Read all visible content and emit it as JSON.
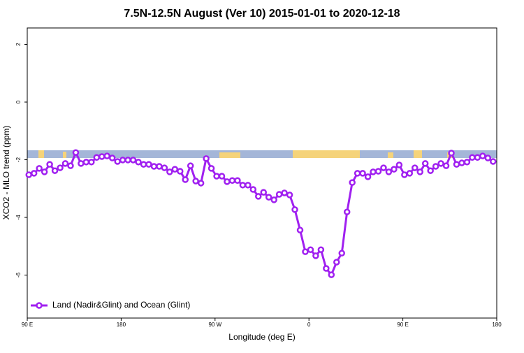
{
  "chart_data": {
    "type": "line",
    "title": "7.5N-12.5N August (Ver 10)   2015-01-01 to 2020-12-18",
    "x_label": "Longitude (deg E)",
    "y_label": "XCO2 - MLO trend (ppm)",
    "x": [
      91.5,
      96.5,
      101.5,
      106.5,
      111.5,
      116.5,
      121.5,
      126.5,
      131.5,
      136.5,
      141.5,
      146.5,
      151.5,
      156.5,
      161.5,
      166.5,
      171.5,
      176.5,
      181.5,
      186.5,
      191.5,
      196.5,
      201.5,
      206.5,
      211.5,
      216.5,
      221.5,
      226.5,
      231.5,
      236.5,
      241.5,
      246.5,
      251.5,
      256.5,
      261.5,
      266.5,
      271.5,
      276.5,
      281.5,
      286.5,
      291.5,
      296.5,
      301.5,
      306.5,
      311.5,
      316.5,
      321.5,
      326.5,
      331.5,
      336.5,
      341.5,
      346.5,
      351.5,
      356.5,
      361.5,
      366.5,
      371.5,
      376.5,
      381.5,
      386.5,
      391.5,
      396.5,
      401.5,
      406.5,
      411.5,
      416.5,
      421.5,
      426.5,
      431.5,
      436.5,
      441.5,
      446.5,
      451.5,
      456.5,
      461.5,
      466.5,
      471.5,
      476.5,
      481.5,
      486.5,
      491.5,
      496.5,
      501.5,
      506.5,
      511.5,
      516.5,
      521.5,
      526.5,
      531.5,
      536.5
    ],
    "series": [
      {
        "name": "Land (Nadir&Glint) and Ocean (Glint)",
        "color": "#a020f0",
        "values": [
          -2.52,
          -2.47,
          -2.3,
          -2.42,
          -2.16,
          -2.38,
          -2.28,
          -2.13,
          -2.21,
          -1.75,
          -2.13,
          -2.08,
          -2.08,
          -1.92,
          -1.89,
          -1.87,
          -1.94,
          -2.06,
          -2.01,
          -2.01,
          -2.01,
          -2.08,
          -2.16,
          -2.16,
          -2.23,
          -2.23,
          -2.28,
          -2.42,
          -2.33,
          -2.4,
          -2.69,
          -2.21,
          -2.74,
          -2.81,
          -1.96,
          -2.3,
          -2.57,
          -2.57,
          -2.76,
          -2.72,
          -2.72,
          -2.88,
          -2.88,
          -3.03,
          -3.27,
          -3.13,
          -3.3,
          -3.39,
          -3.2,
          -3.15,
          -3.22,
          -3.73,
          -4.44,
          -5.19,
          -5.12,
          -5.33,
          -5.12,
          -5.77,
          -5.99,
          -5.55,
          -5.24,
          -3.81,
          -2.79,
          -2.47,
          -2.47,
          -2.59,
          -2.42,
          -2.4,
          -2.28,
          -2.42,
          -2.33,
          -2.18,
          -2.52,
          -2.47,
          -2.28,
          -2.42,
          -2.13,
          -2.38,
          -2.23,
          -2.13,
          -2.21,
          -1.77,
          -2.16,
          -2.11,
          -2.08,
          -1.92,
          -1.92,
          -1.87,
          -1.94,
          -2.06
        ]
      }
    ],
    "xlim": [
      90,
      540
    ],
    "ylim": [
      -7.49,
      2.57
    ],
    "xticks": [
      {
        "value": 90,
        "label": "90 E"
      },
      180,
      {
        "value": 270,
        "label": "90 W"
      },
      {
        "value": 360,
        "label": "0"
      },
      {
        "value": 450,
        "label": "90 E"
      },
      180
    ],
    "yticks": [
      2,
      0,
      -2,
      -4,
      -6
    ],
    "legend": "bottomleft"
  }
}
